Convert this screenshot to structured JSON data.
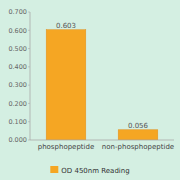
{
  "chart_data": {
    "type": "bar",
    "categories": [
      "phosphopeptide",
      "non-phosphopeptide"
    ],
    "series": [
      {
        "name": "OD 450nm Reading",
        "color": "#F5A623",
        "values": [
          0.603,
          0.056
        ]
      }
    ],
    "ylim": [
      0,
      0.7
    ],
    "yticks": [
      {
        "value": 0,
        "label": "0.000"
      },
      {
        "value": 0.1,
        "label": "0.100"
      },
      {
        "value": 0.2,
        "label": "0.200"
      },
      {
        "value": 0.3,
        "label": "0.300"
      },
      {
        "value": 0.4,
        "label": "0.400"
      },
      {
        "value": 0.5,
        "label": "0.500"
      },
      {
        "value": 0.6,
        "label": "0.600"
      },
      {
        "value": 0.7,
        "label": "0.700"
      }
    ],
    "grid": false,
    "legend": "bottom",
    "data_labels": true
  }
}
